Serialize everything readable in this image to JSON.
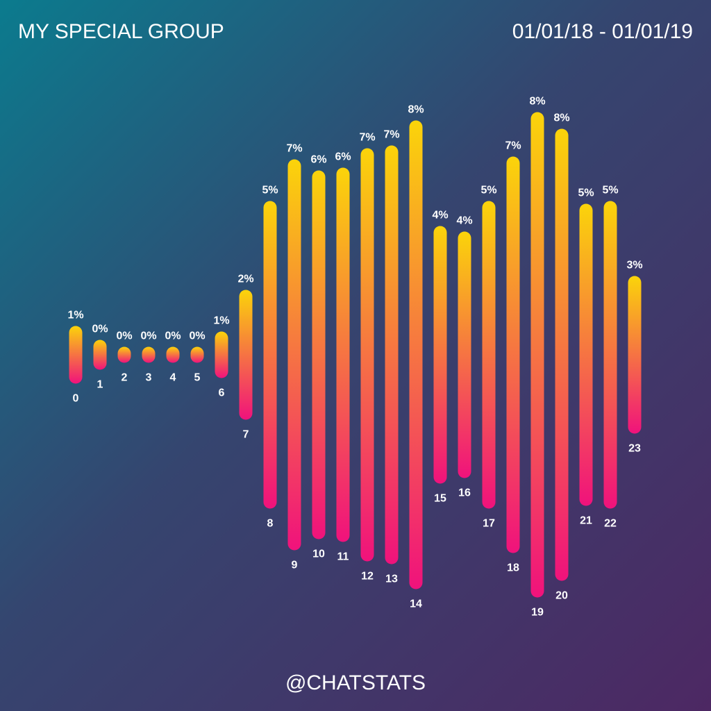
{
  "chart_data": {
    "type": "bar",
    "title": "MY SPECIAL GROUP",
    "subtitle": "01/01/18 - 01/01/19",
    "footer": "@CHATSTATS",
    "categories": [
      "0",
      "1",
      "2",
      "3",
      "4",
      "5",
      "6",
      "7",
      "8",
      "9",
      "10",
      "11",
      "12",
      "13",
      "14",
      "15",
      "16",
      "17",
      "18",
      "19",
      "20",
      "21",
      "22",
      "23"
    ],
    "values": [
      0.8,
      0.3,
      0.05,
      0.05,
      0.05,
      0.05,
      0.6,
      2.1,
      5.3,
      6.8,
      6.4,
      6.5,
      7.2,
      7.3,
      8.2,
      4.4,
      4.2,
      5.3,
      6.9,
      8.5,
      7.9,
      5.2,
      5.3,
      2.6
    ],
    "value_labels": [
      "1%",
      "0%",
      "0%",
      "0%",
      "0%",
      "0%",
      "1%",
      "2%",
      "5%",
      "7%",
      "6%",
      "6%",
      "7%",
      "7%",
      "8%",
      "4%",
      "4%",
      "5%",
      "7%",
      "8%",
      "8%",
      "5%",
      "5%",
      "3%"
    ],
    "colors": [
      "#fbd40a",
      "#f0127c"
    ]
  }
}
